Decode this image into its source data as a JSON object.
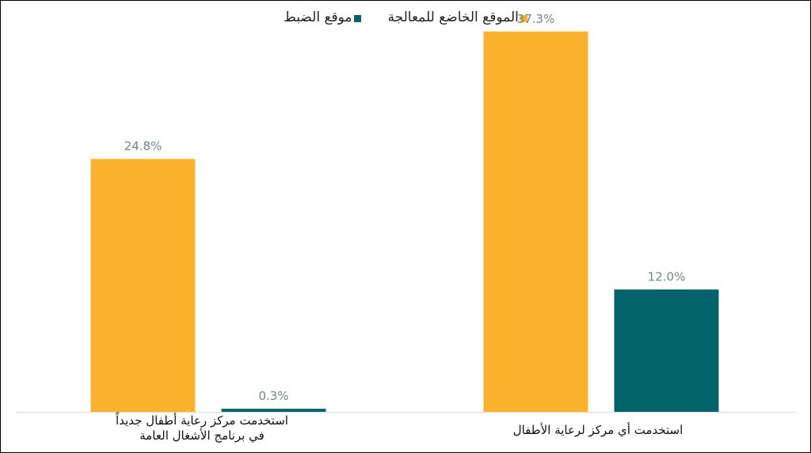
{
  "chart_data": {
    "type": "bar",
    "categories": [
      "استخدمت مركز رعاية أطفال جديداً في برنامج الأشغال العامة",
      "استخدمت أي مركز لرعاية الأطفال"
    ],
    "series": [
      {
        "name": "الموقع الخاضع للمعالجة",
        "values": [
          24.8,
          37.3
        ],
        "labels": [
          "24.8%",
          "37.3%"
        ],
        "color": "#FBB32D"
      },
      {
        "name": "موقع الضبط",
        "values": [
          0.3,
          12.0
        ],
        "labels": [
          "0.3%",
          "12.0%"
        ],
        "color": "#03636B"
      }
    ],
    "ylim": [
      0,
      40
    ],
    "grid": false,
    "legend_position": "top",
    "label_color": "#6B8A88",
    "axis_color": "#D9D9D9"
  },
  "category_lines": [
    [
      "استخدمت مركز رعاية أطفال جديداً",
      "في برنامج الأشغال العامة"
    ],
    [
      "استخدمت أي مركز لرعاية الأطفال"
    ]
  ]
}
